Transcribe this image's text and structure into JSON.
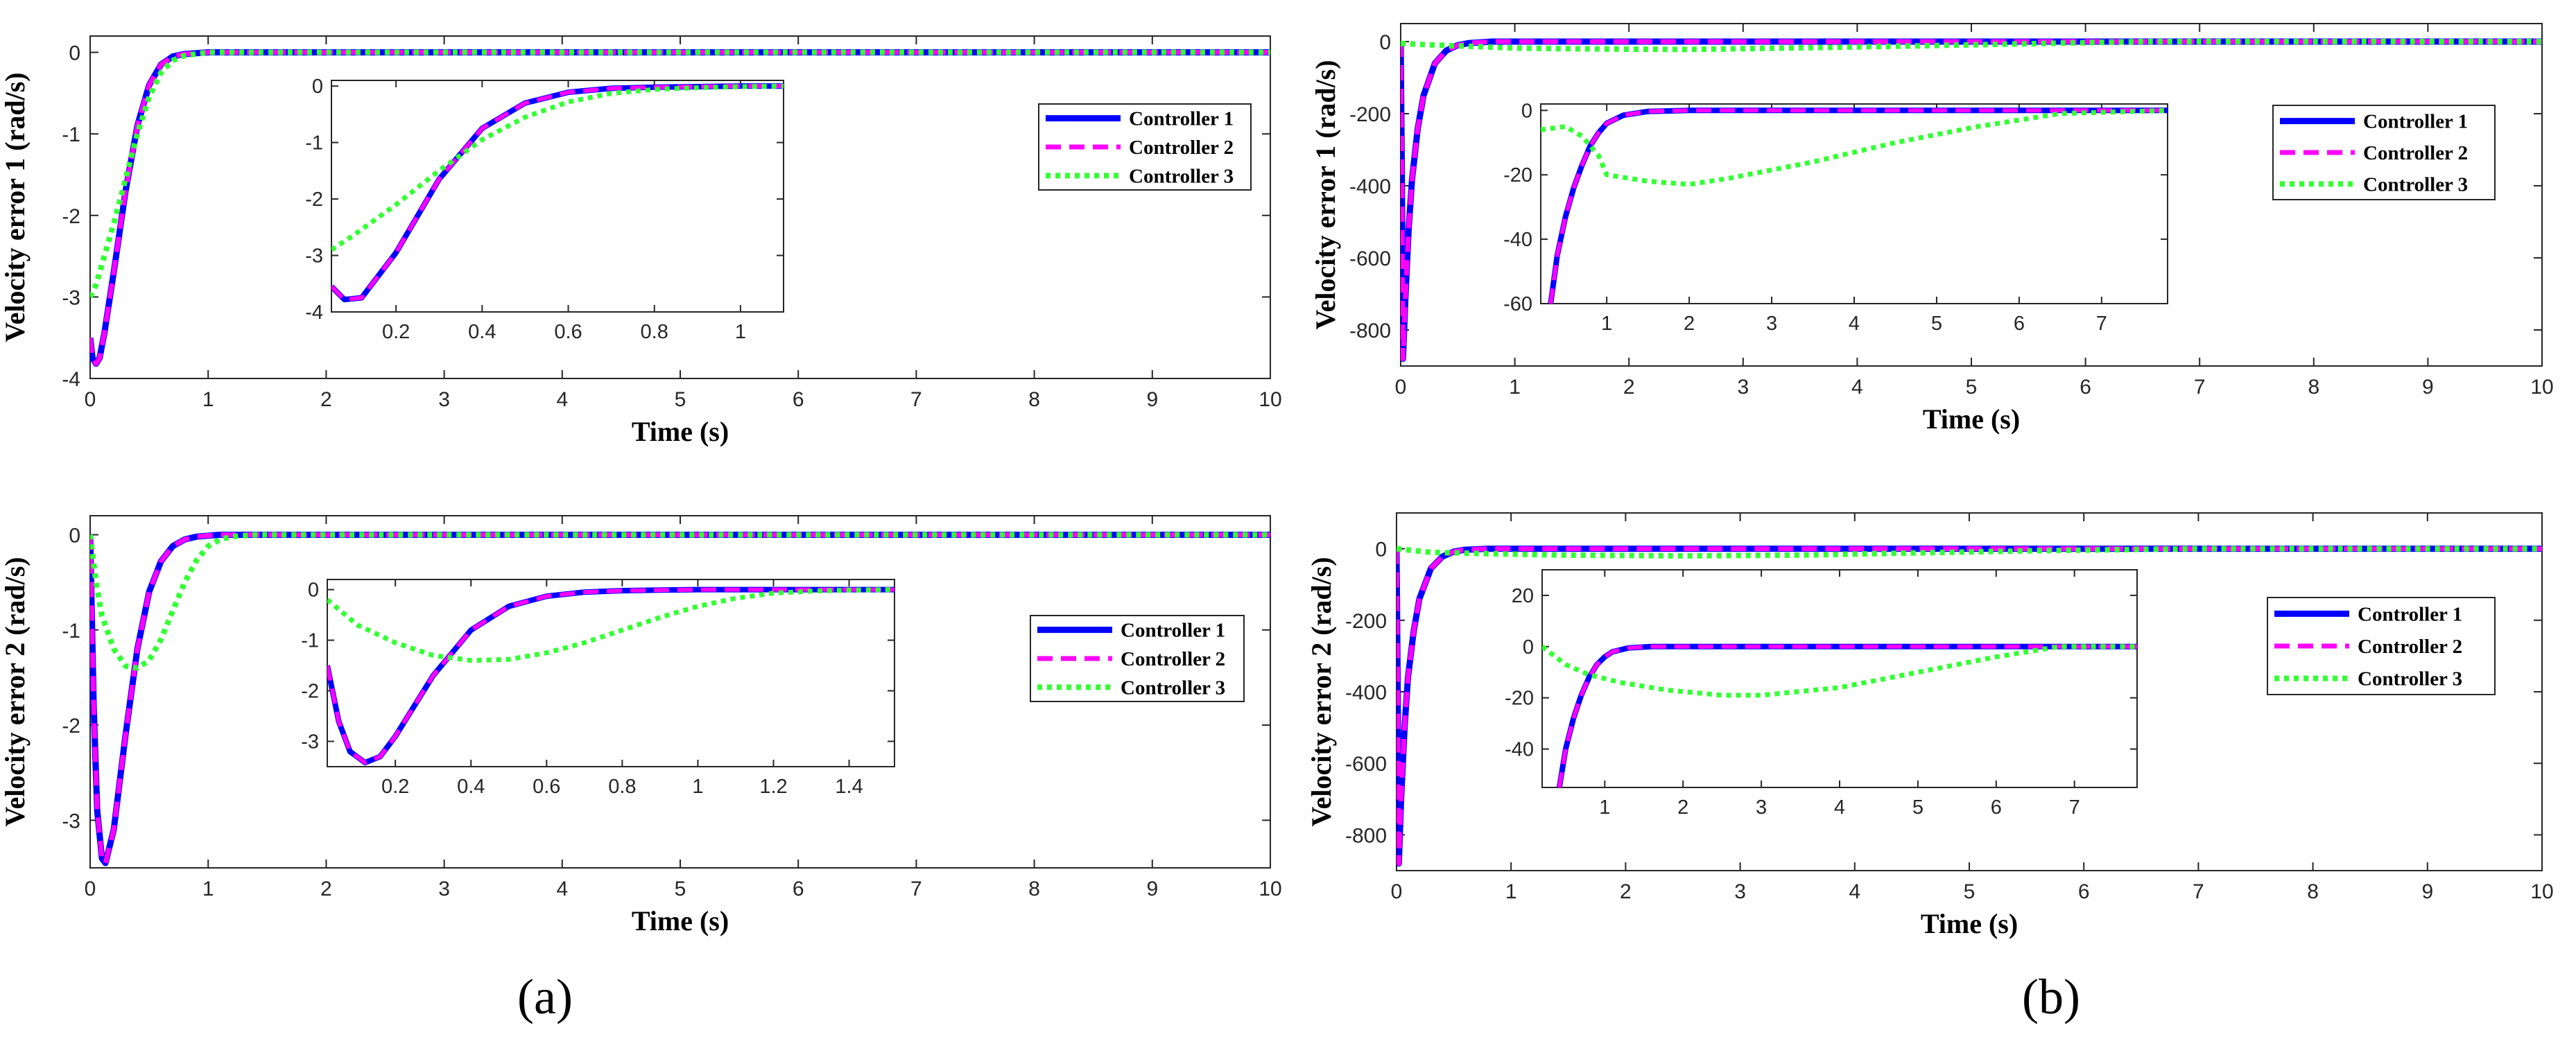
{
  "figure": {
    "panel_labels": [
      "(a)",
      "(b)"
    ],
    "legend_entries": [
      "Controller 1",
      "Controller 2",
      "Controller 3"
    ],
    "series_colors": {
      "Controller 1": "#0000ff",
      "Controller 2": "#ff00ff",
      "Controller 3": "#33ff33"
    }
  },
  "chart_data": [
    {
      "id": "a-top",
      "type": "line",
      "panel": "(a)",
      "xlabel": "Time (s)",
      "ylabel": "Velocity error 1 (rad/s)",
      "xlim": [
        0,
        10
      ],
      "ylim": [
        -4,
        0.2
      ],
      "xticks": [
        0,
        1,
        2,
        3,
        4,
        5,
        6,
        7,
        8,
        9,
        10
      ],
      "yticks": [
        -4,
        -3,
        -2,
        -1,
        0
      ],
      "legend": [
        "Controller 1",
        "Controller 2",
        "Controller 3"
      ],
      "legend_position": "right",
      "series": [
        {
          "name": "Controller 1",
          "x": [
            0,
            0.02,
            0.05,
            0.08,
            0.12,
            0.2,
            0.3,
            0.4,
            0.5,
            0.6,
            0.7,
            0.8,
            0.9,
            1.0,
            10
          ],
          "y": [
            -3.5,
            -3.75,
            -3.82,
            -3.75,
            -3.45,
            -2.7,
            -1.7,
            -0.9,
            -0.4,
            -0.15,
            -0.05,
            -0.02,
            -0.01,
            0,
            0
          ]
        },
        {
          "name": "Controller 2",
          "x": [
            0,
            0.02,
            0.05,
            0.08,
            0.12,
            0.2,
            0.3,
            0.4,
            0.5,
            0.6,
            0.7,
            0.8,
            0.9,
            1.0,
            10
          ],
          "y": [
            -3.5,
            -3.75,
            -3.82,
            -3.75,
            -3.45,
            -2.7,
            -1.7,
            -0.9,
            -0.4,
            -0.15,
            -0.05,
            -0.02,
            -0.01,
            0,
            0
          ]
        },
        {
          "name": "Controller 3",
          "x": [
            0,
            0.05,
            0.1,
            0.2,
            0.3,
            0.4,
            0.5,
            0.6,
            0.7,
            0.8,
            1.0,
            10
          ],
          "y": [
            -3.0,
            -2.85,
            -2.6,
            -2.1,
            -1.55,
            -1.0,
            -0.55,
            -0.25,
            -0.1,
            -0.04,
            0,
            0
          ]
        }
      ],
      "inset": {
        "xlim": [
          0.05,
          1.1
        ],
        "ylim": [
          -4,
          0.1
        ],
        "xticks": [
          0.2,
          0.4,
          0.6,
          0.8,
          1
        ],
        "yticks": [
          -4,
          -3,
          -2,
          -1,
          0
        ],
        "series": [
          {
            "name": "Controller 1",
            "x": [
              0.05,
              0.08,
              0.12,
              0.2,
              0.3,
              0.4,
              0.5,
              0.6,
              0.7,
              0.8,
              0.9,
              1.0,
              1.1
            ],
            "y": [
              -3.55,
              -3.78,
              -3.75,
              -2.95,
              -1.65,
              -0.75,
              -0.3,
              -0.11,
              -0.04,
              -0.02,
              -0.01,
              0,
              0
            ]
          },
          {
            "name": "Controller 2",
            "x": [
              0.05,
              0.08,
              0.12,
              0.2,
              0.3,
              0.4,
              0.5,
              0.6,
              0.7,
              0.8,
              0.9,
              1.0,
              1.1
            ],
            "y": [
              -3.55,
              -3.78,
              -3.75,
              -2.95,
              -1.65,
              -0.75,
              -0.3,
              -0.11,
              -0.04,
              -0.02,
              -0.01,
              0,
              0
            ]
          },
          {
            "name": "Controller 3",
            "x": [
              0.05,
              0.1,
              0.2,
              0.3,
              0.4,
              0.5,
              0.6,
              0.7,
              0.8,
              0.9,
              1.0,
              1.1
            ],
            "y": [
              -2.9,
              -2.65,
              -2.1,
              -1.5,
              -0.95,
              -0.55,
              -0.28,
              -0.13,
              -0.06,
              -0.03,
              -0.01,
              0
            ]
          }
        ]
      }
    },
    {
      "id": "a-bottom",
      "type": "line",
      "panel": "(a)",
      "xlabel": "Time (s)",
      "ylabel": "Velocity error 2 (rad/s)",
      "xlim": [
        0,
        10
      ],
      "ylim": [
        -3.5,
        0.2
      ],
      "xticks": [
        0,
        1,
        2,
        3,
        4,
        5,
        6,
        7,
        8,
        9,
        10
      ],
      "yticks": [
        -3,
        -2,
        -1,
        0
      ],
      "legend": [
        "Controller 1",
        "Controller 2",
        "Controller 3"
      ],
      "legend_position": "right",
      "series": [
        {
          "name": "Controller 1",
          "x": [
            0,
            0.03,
            0.06,
            0.1,
            0.13,
            0.2,
            0.3,
            0.4,
            0.5,
            0.6,
            0.7,
            0.8,
            0.9,
            1.0,
            1.1,
            10
          ],
          "y": [
            0,
            -1.8,
            -2.9,
            -3.4,
            -3.45,
            -3.1,
            -2.1,
            -1.2,
            -0.6,
            -0.28,
            -0.12,
            -0.05,
            -0.02,
            -0.01,
            0,
            0
          ]
        },
        {
          "name": "Controller 2",
          "x": [
            0,
            0.03,
            0.06,
            0.1,
            0.13,
            0.2,
            0.3,
            0.4,
            0.5,
            0.6,
            0.7,
            0.8,
            0.9,
            1.0,
            1.1,
            10
          ],
          "y": [
            0,
            -1.8,
            -2.9,
            -3.4,
            -3.45,
            -3.1,
            -2.1,
            -1.2,
            -0.6,
            -0.28,
            -0.12,
            -0.05,
            -0.02,
            -0.01,
            0,
            0
          ]
        },
        {
          "name": "Controller 3",
          "x": [
            0,
            0.05,
            0.1,
            0.2,
            0.3,
            0.4,
            0.5,
            0.6,
            0.7,
            0.8,
            0.9,
            1.0,
            1.1,
            1.2,
            1.4,
            10
          ],
          "y": [
            0,
            -0.5,
            -0.85,
            -1.2,
            -1.38,
            -1.4,
            -1.32,
            -1.1,
            -0.8,
            -0.5,
            -0.27,
            -0.12,
            -0.05,
            -0.02,
            0,
            0
          ]
        }
      ],
      "inset": {
        "xlim": [
          0.02,
          1.52
        ],
        "ylim": [
          -3.5,
          0.2
        ],
        "xticks": [
          0.2,
          0.4,
          0.6,
          0.8,
          1,
          1.2,
          1.4
        ],
        "yticks": [
          -3,
          -2,
          -1,
          0
        ],
        "series": [
          {
            "name": "Controller 1",
            "x": [
              0.02,
              0.05,
              0.08,
              0.12,
              0.16,
              0.2,
              0.3,
              0.4,
              0.5,
              0.6,
              0.7,
              0.8,
              0.9,
              1.0,
              1.2,
              1.52
            ],
            "y": [
              -1.5,
              -2.6,
              -3.2,
              -3.42,
              -3.3,
              -2.9,
              -1.7,
              -0.8,
              -0.33,
              -0.13,
              -0.05,
              -0.02,
              -0.01,
              0,
              0,
              0
            ]
          },
          {
            "name": "Controller 2",
            "x": [
              0.02,
              0.05,
              0.08,
              0.12,
              0.16,
              0.2,
              0.3,
              0.4,
              0.5,
              0.6,
              0.7,
              0.8,
              0.9,
              1.0,
              1.2,
              1.52
            ],
            "y": [
              -1.5,
              -2.6,
              -3.2,
              -3.42,
              -3.3,
              -2.9,
              -1.7,
              -0.8,
              -0.33,
              -0.13,
              -0.05,
              -0.02,
              -0.01,
              0,
              0,
              0
            ]
          },
          {
            "name": "Controller 3",
            "x": [
              0.02,
              0.1,
              0.2,
              0.3,
              0.4,
              0.5,
              0.6,
              0.7,
              0.8,
              0.9,
              1.0,
              1.1,
              1.2,
              1.3,
              1.4,
              1.52
            ],
            "y": [
              -0.2,
              -0.7,
              -1.05,
              -1.3,
              -1.4,
              -1.38,
              -1.25,
              -1.05,
              -0.8,
              -0.55,
              -0.33,
              -0.17,
              -0.07,
              -0.03,
              -0.01,
              0
            ]
          }
        ]
      }
    },
    {
      "id": "b-top",
      "type": "line",
      "panel": "(b)",
      "xlabel": "Time (s)",
      "ylabel": "Velocity error 1 (rad/s)",
      "xlim": [
        0,
        10
      ],
      "ylim": [
        -900,
        50
      ],
      "xticks": [
        0,
        1,
        2,
        3,
        4,
        5,
        6,
        7,
        8,
        9,
        10
      ],
      "yticks": [
        -800,
        -600,
        -400,
        -200,
        0
      ],
      "legend": [
        "Controller 1",
        "Controller 2",
        "Controller 3"
      ],
      "legend_position": "right",
      "series": [
        {
          "name": "Controller 1",
          "x": [
            0,
            0.01,
            0.02,
            0.04,
            0.07,
            0.1,
            0.15,
            0.2,
            0.3,
            0.4,
            0.5,
            0.6,
            0.8,
            10
          ],
          "y": [
            0,
            -350,
            -880,
            -720,
            -520,
            -380,
            -240,
            -150,
            -60,
            -25,
            -10,
            -4,
            0,
            0
          ]
        },
        {
          "name": "Controller 2",
          "x": [
            0,
            0.01,
            0.02,
            0.04,
            0.07,
            0.1,
            0.15,
            0.2,
            0.3,
            0.4,
            0.5,
            0.6,
            0.8,
            10
          ],
          "y": [
            0,
            -350,
            -880,
            -720,
            -520,
            -380,
            -240,
            -150,
            -60,
            -25,
            -10,
            -4,
            0,
            0
          ]
        },
        {
          "name": "Controller 3",
          "x": [
            0,
            0.2,
            0.5,
            1.0,
            1.5,
            2.5,
            4.0,
            5.5,
            6.5,
            10
          ],
          "y": [
            -5,
            -8,
            -12,
            -18,
            -20,
            -22,
            -15,
            -6,
            0,
            0
          ]
        }
      ],
      "inset": {
        "xlim": [
          0.2,
          7.8
        ],
        "ylim": [
          -60,
          2
        ],
        "xticks": [
          1,
          2,
          3,
          4,
          5,
          6,
          7
        ],
        "yticks": [
          -60,
          -40,
          -20,
          0
        ],
        "series": [
          {
            "name": "Controller 1",
            "x": [
              0.32,
              0.4,
              0.5,
              0.6,
              0.7,
              0.8,
              0.9,
              1.0,
              1.2,
              1.5,
              2.0,
              7.8
            ],
            "y": [
              -60,
              -45,
              -33,
              -24,
              -17,
              -11,
              -7,
              -4,
              -1.5,
              -0.3,
              0,
              0
            ]
          },
          {
            "name": "Controller 2",
            "x": [
              0.32,
              0.4,
              0.5,
              0.6,
              0.7,
              0.8,
              0.9,
              1.0,
              1.2,
              1.5,
              2.0,
              7.8
            ],
            "y": [
              -60,
              -45,
              -33,
              -24,
              -17,
              -11,
              -7,
              -4,
              -1.5,
              -0.3,
              0,
              0
            ]
          },
          {
            "name": "Controller 3",
            "x": [
              0.2,
              0.5,
              0.7,
              0.9,
              1.0,
              1.5,
              2.0,
              2.5,
              3.5,
              4.5,
              5.5,
              6.5,
              7.8
            ],
            "y": [
              -6,
              -5,
              -8,
              -14,
              -20,
              -22,
              -23,
              -21,
              -16,
              -10,
              -5,
              -1,
              0
            ]
          }
        ]
      }
    },
    {
      "id": "b-bottom",
      "type": "line",
      "panel": "(b)",
      "xlabel": "Time (s)",
      "ylabel": "Velocity error 2 (rad/s)",
      "xlim": [
        0,
        10
      ],
      "ylim": [
        -900,
        100
      ],
      "xticks": [
        0,
        1,
        2,
        3,
        4,
        5,
        6,
        7,
        8,
        9,
        10
      ],
      "yticks": [
        -800,
        -600,
        -400,
        -200,
        0
      ],
      "legend": [
        "Controller 1",
        "Controller 2",
        "Controller 3"
      ],
      "legend_position": "right",
      "series": [
        {
          "name": "Controller 1",
          "x": [
            0,
            0.01,
            0.02,
            0.04,
            0.07,
            0.1,
            0.15,
            0.2,
            0.3,
            0.4,
            0.5,
            0.6,
            0.8,
            10
          ],
          "y": [
            0,
            -400,
            -880,
            -700,
            -500,
            -360,
            -230,
            -140,
            -55,
            -22,
            -8,
            -3,
            0,
            0
          ]
        },
        {
          "name": "Controller 2",
          "x": [
            0,
            0.01,
            0.02,
            0.04,
            0.07,
            0.1,
            0.15,
            0.2,
            0.3,
            0.4,
            0.5,
            0.6,
            0.8,
            10
          ],
          "y": [
            0,
            -400,
            -880,
            -700,
            -500,
            -360,
            -230,
            -140,
            -55,
            -22,
            -8,
            -3,
            0,
            0
          ]
        },
        {
          "name": "Controller 3",
          "x": [
            0,
            0.3,
            0.8,
            1.5,
            2.5,
            3.5,
            4.5,
            5.5,
            6.5,
            7,
            10
          ],
          "y": [
            0,
            -10,
            -14,
            -18,
            -20,
            -18,
            -12,
            -6,
            -2,
            0,
            0
          ]
        }
      ],
      "inset": {
        "xlim": [
          0.2,
          7.8
        ],
        "ylim": [
          -55,
          30
        ],
        "xticks": [
          1,
          2,
          3,
          4,
          5,
          6,
          7
        ],
        "yticks": [
          -40,
          -20,
          0,
          20
        ],
        "series": [
          {
            "name": "Controller 1",
            "x": [
              0.42,
              0.5,
              0.6,
              0.7,
              0.8,
              0.9,
              1.0,
              1.1,
              1.3,
              1.6,
              2.0,
              7.8
            ],
            "y": [
              -55,
              -40,
              -28,
              -19,
              -12,
              -7,
              -4,
              -2,
              -0.5,
              0,
              0,
              0
            ]
          },
          {
            "name": "Controller 2",
            "x": [
              0.42,
              0.5,
              0.6,
              0.7,
              0.8,
              0.9,
              1.0,
              1.1,
              1.3,
              1.6,
              2.0,
              7.8
            ],
            "y": [
              -55,
              -40,
              -28,
              -19,
              -12,
              -7,
              -4,
              -2,
              -0.5,
              0,
              0,
              0
            ]
          },
          {
            "name": "Controller 3",
            "x": [
              0.2,
              0.5,
              0.8,
              1.2,
              1.8,
              2.5,
              3.0,
              4.0,
              5.0,
              6.0,
              6.8,
              7.8
            ],
            "y": [
              0,
              -7,
              -11,
              -14,
              -17,
              -19,
              -19,
              -16,
              -10,
              -4,
              0,
              0
            ]
          }
        ]
      }
    }
  ]
}
